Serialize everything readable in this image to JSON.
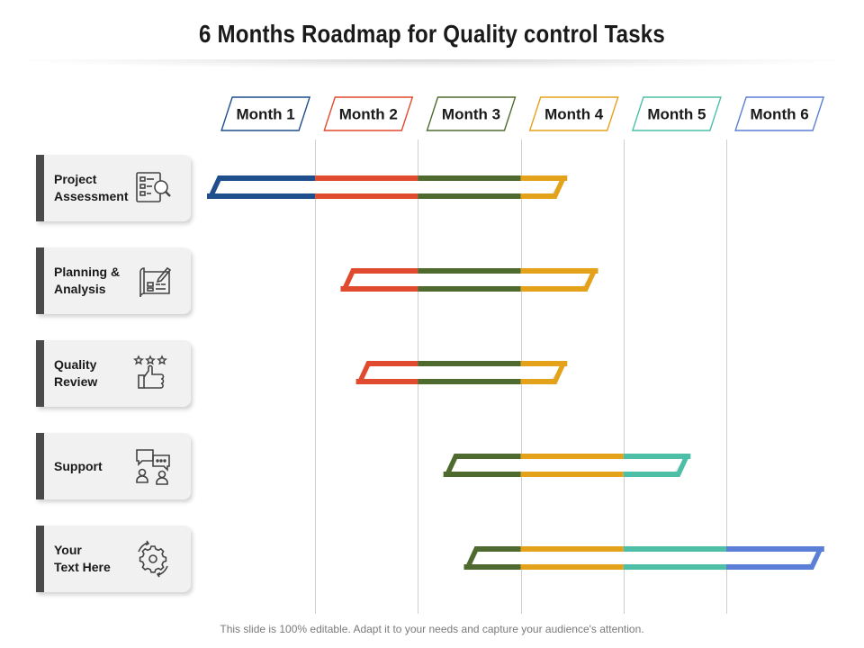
{
  "title": "6 Months Roadmap for Quality control Tasks",
  "footer": "This slide is 100% editable. Adapt it to your needs and capture your audience's attention.",
  "colors": {
    "month1": "#1f4e8c",
    "month2": "#e04a2f",
    "month3": "#4e6a2e",
    "month4": "#e3a21a",
    "month5": "#4dbfa6",
    "month6": "#5b7fd6",
    "card_edge": "#4a4a4a",
    "card_bg": "#f1f1f1"
  },
  "months": [
    "Month 1",
    "Month 2",
    "Month 3",
    "Month 4",
    "Month 5",
    "Month 6"
  ],
  "tasks": [
    {
      "label": "Project\nAssessment",
      "icon": "checklist-magnifier-icon",
      "start": 0.0,
      "end": 3.4
    },
    {
      "label": "Planning &\nAnalysis",
      "icon": "blueprint-pencil-icon",
      "start": 1.3,
      "end": 3.7
    },
    {
      "label": "Quality\nReview",
      "icon": "stars-thumbs-up-icon",
      "start": 1.45,
      "end": 3.4
    },
    {
      "label": "Support",
      "icon": "chat-people-icon",
      "start": 2.3,
      "end": 4.6
    },
    {
      "label": "Your\nText Here",
      "icon": "gear-cycle-icon",
      "start": 2.5,
      "end": 5.9
    }
  ]
}
